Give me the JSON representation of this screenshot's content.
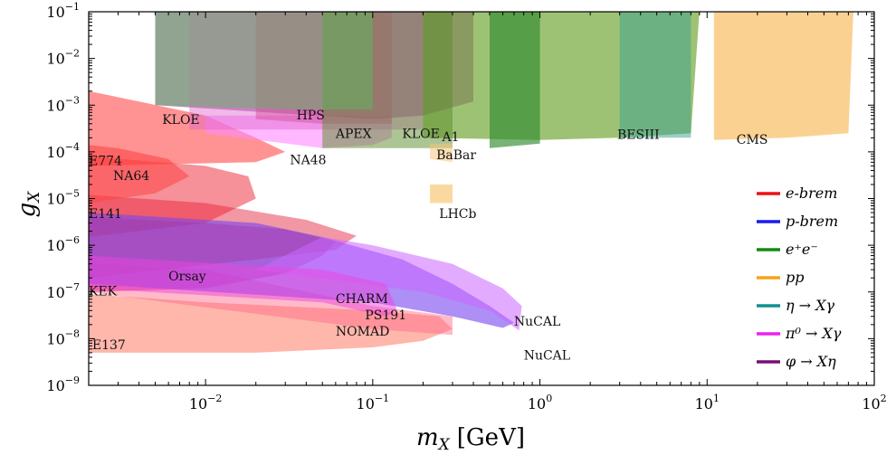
{
  "chart_data": {
    "type": "area",
    "title": "",
    "x_axis": {
      "label_var": "m",
      "label_sub": "X",
      "label_unit": "[GeV]",
      "scale": "log",
      "range": [
        0.002,
        100
      ],
      "ticks": [
        {
          "value": 0.01,
          "base": "10",
          "exp": "−2"
        },
        {
          "value": 0.1,
          "base": "10",
          "exp": "−1"
        },
        {
          "value": 1,
          "base": "10",
          "exp": "0"
        },
        {
          "value": 10,
          "base": "10",
          "exp": "1"
        },
        {
          "value": 100,
          "base": "10",
          "exp": "2"
        }
      ]
    },
    "y_axis": {
      "label_var": "g",
      "label_sub": "X",
      "scale": "log",
      "range": [
        1e-09,
        0.1
      ],
      "ticks": [
        {
          "value": 1e-09,
          "base": "10",
          "exp": "−9"
        },
        {
          "value": 1e-08,
          "base": "10",
          "exp": "−8"
        },
        {
          "value": 1e-07,
          "base": "10",
          "exp": "−7"
        },
        {
          "value": 1e-06,
          "base": "10",
          "exp": "−6"
        },
        {
          "value": 1e-05,
          "base": "10",
          "exp": "−5"
        },
        {
          "value": 0.0001,
          "base": "10",
          "exp": "−4"
        },
        {
          "value": 0.001,
          "base": "10",
          "exp": "−3"
        },
        {
          "value": 0.01,
          "base": "10",
          "exp": "−2"
        },
        {
          "value": 0.1,
          "base": "10",
          "exp": "−1"
        }
      ]
    },
    "grid": false,
    "legend_position": "right",
    "legend": [
      {
        "text": "e-brem",
        "color": "#ee1111"
      },
      {
        "text": "p-brem",
        "color": "#1a1aee"
      },
      {
        "text": "e⁺e⁻",
        "color": "#138a13"
      },
      {
        "text": "pp",
        "color": "#f7a21b"
      },
      {
        "text": "η → Xγ",
        "color": "#12908e"
      },
      {
        "text": "π⁰ → Xγ",
        "color": "#ee22ee"
      },
      {
        "text": "φ → Xη",
        "color": "#7a0e7a"
      }
    ],
    "regions": [
      {
        "name": "E137",
        "group": "e-brem",
        "color": "#ff7a66",
        "opacity": 0.55,
        "points": [
          [
            0.002,
            5e-09
          ],
          [
            0.02,
            5e-09
          ],
          [
            0.1,
            6.5e-09
          ],
          [
            0.2,
            9e-09
          ],
          [
            0.3,
            1.6e-08
          ],
          [
            0.25,
            3e-08
          ],
          [
            0.1,
            4e-08
          ],
          [
            0.01,
            6e-08
          ],
          [
            0.002,
            9e-08
          ]
        ]
      },
      {
        "name": "KEK",
        "group": "e-brem",
        "color": "#ff6688",
        "opacity": 0.45,
        "points": [
          [
            0.002,
            1e-07
          ],
          [
            0.1,
            1.6e-08
          ],
          [
            0.3,
            1.2e-08
          ],
          [
            0.3,
            3e-08
          ],
          [
            0.1,
            5e-08
          ],
          [
            0.01,
            3e-07
          ],
          [
            0.002,
            4e-07
          ]
        ]
      },
      {
        "name": "Orsay",
        "group": "e-brem",
        "color": "#dd2277",
        "opacity": 0.5,
        "points": [
          [
            0.002,
            1e-07
          ],
          [
            0.01,
            1.2e-07
          ],
          [
            0.03,
            2.5e-07
          ],
          [
            0.05,
            6e-07
          ],
          [
            0.06,
            1.2e-06
          ],
          [
            0.03,
            2.2e-06
          ],
          [
            0.01,
            3e-06
          ],
          [
            0.002,
            4e-06
          ]
        ]
      },
      {
        "name": "E141",
        "group": "e-brem",
        "color": "#e6304a",
        "opacity": 0.5,
        "points": [
          [
            0.002,
            2e-07
          ],
          [
            0.02,
            5e-07
          ],
          [
            0.06,
            8e-07
          ],
          [
            0.08,
            1.6e-06
          ],
          [
            0.04,
            3.5e-06
          ],
          [
            0.01,
            8e-06
          ],
          [
            0.002,
            1.2e-05
          ]
        ]
      },
      {
        "name": "NA64",
        "group": "e-brem",
        "color": "#ee2233",
        "opacity": 0.5,
        "points": [
          [
            0.002,
            1.5e-06
          ],
          [
            0.01,
            3e-06
          ],
          [
            0.02,
            1e-05
          ],
          [
            0.018,
            3e-05
          ],
          [
            0.01,
            5e-05
          ],
          [
            0.002,
            8e-05
          ]
        ]
      },
      {
        "name": "E774",
        "group": "e-brem",
        "color": "#ff4444",
        "opacity": 0.55,
        "points": [
          [
            0.002,
            8e-06
          ],
          [
            0.005,
            1.3e-05
          ],
          [
            0.008,
            3e-05
          ],
          [
            0.006,
            7e-05
          ],
          [
            0.003,
            0.00012
          ],
          [
            0.002,
            0.00014
          ]
        ]
      },
      {
        "name": "KLOE-e",
        "group": "e-brem",
        "color": "#ff3b3b",
        "opacity": 0.55,
        "points": [
          [
            0.002,
            5e-05
          ],
          [
            0.02,
            6e-05
          ],
          [
            0.03,
            0.0001
          ],
          [
            0.02,
            0.0002
          ],
          [
            0.01,
            0.0006
          ],
          [
            0.004,
            0.0012
          ],
          [
            0.002,
            0.002
          ]
        ]
      },
      {
        "name": "CHARM",
        "group": "p-brem",
        "color": "#7744ee",
        "opacity": 0.6,
        "points": [
          [
            0.002,
            1.5e-07
          ],
          [
            0.1,
            6e-08
          ],
          [
            0.3,
            3e-08
          ],
          [
            0.6,
            1.7e-08
          ],
          [
            0.7,
            2.2e-08
          ],
          [
            0.5,
            5e-08
          ],
          [
            0.3,
            1.5e-07
          ],
          [
            0.15,
            5e-07
          ],
          [
            0.05,
            1.5e-06
          ],
          [
            0.02,
            3e-06
          ],
          [
            0.002,
            5e-06
          ]
        ]
      },
      {
        "name": "NuCAL",
        "group": "p-brem",
        "color": "#cc66ff",
        "opacity": 0.55,
        "points": [
          [
            0.02,
            3e-07
          ],
          [
            0.2,
            1e-07
          ],
          [
            0.5,
            4e-08
          ],
          [
            0.75,
            1.5e-08
          ],
          [
            0.78,
            5e-08
          ],
          [
            0.6,
            1.2e-07
          ],
          [
            0.3,
            4e-07
          ],
          [
            0.1,
            1e-06
          ],
          [
            0.05,
            1.5e-06
          ]
        ]
      },
      {
        "name": "PS191",
        "group": "pi0",
        "color": "#ee44dd",
        "opacity": 0.5,
        "points": [
          [
            0.002,
            1.2e-07
          ],
          [
            0.05,
            6e-08
          ],
          [
            0.12,
            3e-08
          ],
          [
            0.14,
            4e-08
          ],
          [
            0.12,
            1.5e-07
          ],
          [
            0.05,
            3e-07
          ],
          [
            0.002,
            6e-07
          ]
        ]
      },
      {
        "name": "NA48",
        "group": "pi0",
        "color": "#ff88ff",
        "opacity": 0.6,
        "points": [
          [
            0.01,
            0.00025
          ],
          [
            0.05,
            0.00012
          ],
          [
            0.1,
            0.00014
          ],
          [
            0.13,
            0.0002
          ],
          [
            0.13,
            0.0006
          ],
          [
            0.01,
            0.0006
          ]
        ]
      },
      {
        "name": "KLOE-phi",
        "group": "phi",
        "color": "#a040a0",
        "opacity": 0.6,
        "points": [
          [
            0.005,
            0.001
          ],
          [
            0.1,
            0.0005
          ],
          [
            0.2,
            0.0006
          ],
          [
            0.4,
            0.0012
          ],
          [
            0.4,
            0.1
          ],
          [
            0.005,
            0.1
          ]
        ]
      },
      {
        "name": "HPS",
        "group": "e-brem",
        "color": "#cc3366",
        "opacity": 0.45,
        "points": [
          [
            0.02,
            0.0005
          ],
          [
            0.05,
            0.0004
          ],
          [
            0.13,
            0.0004
          ],
          [
            0.13,
            0.1
          ],
          [
            0.02,
            0.1
          ]
        ]
      },
      {
        "name": "APEX",
        "group": "e-brem",
        "color": "#dd66cc",
        "opacity": 0.45,
        "points": [
          [
            0.008,
            0.0003
          ],
          [
            0.2,
            0.0003
          ],
          [
            0.2,
            0.1
          ],
          [
            0.008,
            0.1
          ]
        ]
      },
      {
        "name": "BaBar",
        "group": "ee",
        "color": "#6aa12a",
        "opacity": 0.65,
        "points": [
          [
            0.2,
            0.0002
          ],
          [
            1,
            0.00018
          ],
          [
            3,
            0.0002
          ],
          [
            8,
            0.00025
          ],
          [
            9,
            0.1
          ],
          [
            0.2,
            0.1
          ]
        ]
      },
      {
        "name": "A1",
        "group": "e-brem",
        "color": "#5a8c2a",
        "opacity": 0.5,
        "points": [
          [
            0.05,
            0.00012
          ],
          [
            0.3,
            0.00012
          ],
          [
            0.3,
            0.1
          ],
          [
            0.05,
            0.1
          ]
        ]
      },
      {
        "name": "BESIII",
        "group": "ee",
        "color": "#2f8b2f",
        "opacity": 0.65,
        "points": [
          [
            0.5,
            0.00012
          ],
          [
            1,
            0.00015
          ],
          [
            1,
            0.1
          ],
          [
            0.5,
            0.1
          ]
        ]
      },
      {
        "name": "KLOE-ee",
        "group": "ee",
        "color": "#5cba5c",
        "opacity": 0.5,
        "points": [
          [
            0.005,
            0.001
          ],
          [
            0.03,
            0.0008
          ],
          [
            0.1,
            0.0008
          ],
          [
            0.1,
            0.1
          ],
          [
            0.005,
            0.1
          ]
        ]
      },
      {
        "name": "CMS",
        "group": "pp",
        "color": "#f9b34a",
        "opacity": 0.6,
        "points": [
          [
            11,
            0.00018
          ],
          [
            30,
            0.0002
          ],
          [
            70,
            0.00025
          ],
          [
            75,
            0.1
          ],
          [
            11,
            0.1
          ]
        ]
      },
      {
        "name": "LHCb",
        "group": "pp",
        "color": "#f7c060",
        "opacity": 0.6,
        "points": [
          [
            0.22,
            8e-06
          ],
          [
            0.3,
            8e-06
          ],
          [
            0.3,
            2e-05
          ],
          [
            0.22,
            2e-05
          ]
        ]
      },
      {
        "name": "pp-low",
        "group": "pp",
        "color": "#f7c67a",
        "opacity": 0.55,
        "points": [
          [
            0.22,
            7e-05
          ],
          [
            0.3,
            6e-05
          ],
          [
            0.3,
            0.00015
          ],
          [
            0.22,
            0.00015
          ]
        ]
      },
      {
        "name": "eta",
        "group": "eta",
        "color": "#3a9f8f",
        "opacity": 0.5,
        "points": [
          [
            3,
            0.0002
          ],
          [
            8,
            0.0002
          ],
          [
            8,
            0.1
          ],
          [
            3,
            0.1
          ]
        ]
      }
    ],
    "annotations": [
      {
        "text": "KLOE",
        "x": 0.0055,
        "y": 0.0004
      },
      {
        "text": "HPS",
        "x": 0.035,
        "y": 0.0005
      },
      {
        "text": "APEX",
        "x": 0.06,
        "y": 0.0002
      },
      {
        "text": "KLOE",
        "x": 0.15,
        "y": 0.0002
      },
      {
        "text": "A1",
        "x": 0.26,
        "y": 0.00017
      },
      {
        "text": "BaBar",
        "x": 0.24,
        "y": 7e-05
      },
      {
        "text": "NA48",
        "x": 0.032,
        "y": 5.5e-05
      },
      {
        "text": "BESIII",
        "x": 2.9,
        "y": 0.00019
      },
      {
        "text": "CMS",
        "x": 15,
        "y": 0.00015
      },
      {
        "text": "E774",
        "x": 0.002,
        "y": 5.2e-05
      },
      {
        "text": "NA64",
        "x": 0.0028,
        "y": 2.5e-05
      },
      {
        "text": "E141",
        "x": 0.002,
        "y": 3.8e-06
      },
      {
        "text": "LHCb",
        "x": 0.25,
        "y": 3.8e-06
      },
      {
        "text": "Orsay",
        "x": 0.006,
        "y": 1.75e-07
      },
      {
        "text": "KEK",
        "x": 0.002,
        "y": 8.4e-08
      },
      {
        "text": "CHARM",
        "x": 0.06,
        "y": 5.8e-08
      },
      {
        "text": "PS191",
        "x": 0.09,
        "y": 2.6e-08
      },
      {
        "text": "NOMAD",
        "x": 0.06,
        "y": 1.15e-08
      },
      {
        "text": "E137",
        "x": 0.0021,
        "y": 6e-09
      },
      {
        "text": "NuCAL",
        "x": 0.7,
        "y": 1.9e-08
      },
      {
        "text": "NuCAL",
        "x": 0.8,
        "y": 3.6e-09
      }
    ]
  }
}
